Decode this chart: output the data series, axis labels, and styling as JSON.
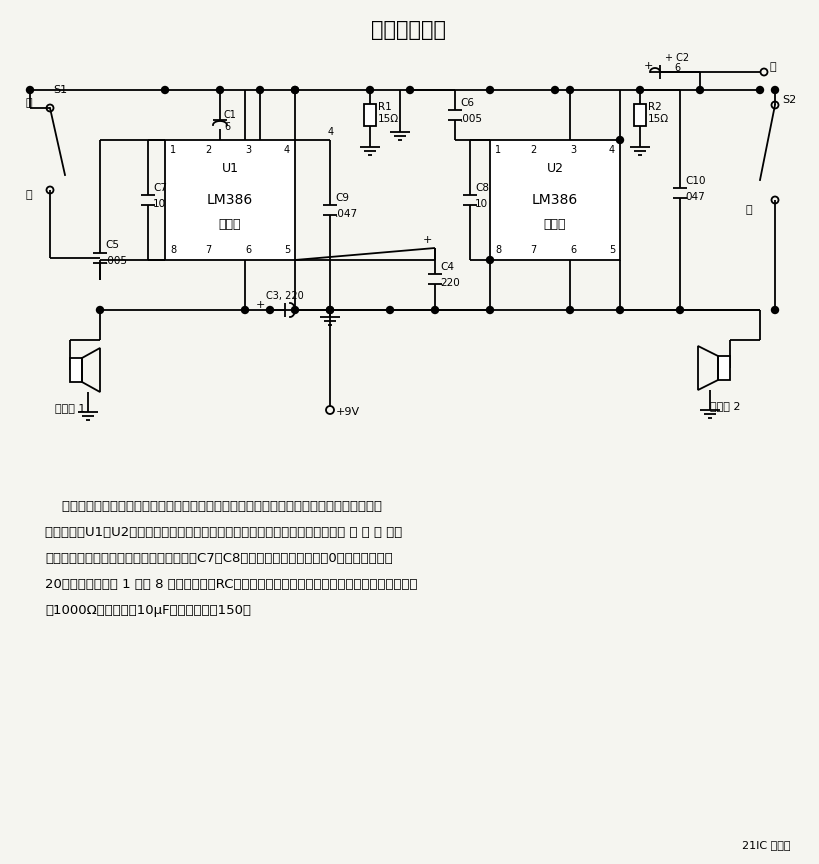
{
  "title": "双向通信电路",
  "title_fontsize": 15,
  "background_color": "#f5f5f0",
  "line_color": "#000000",
  "text_color": "#000000",
  "desc_lines": [
    "    该电路采用两个独立的放大器而非单一的放大器，每个通信站用一个，此外该电路还有一个",
    "时分装置。U1和U2为低压音频放大器，它们都是独立动作的个体，并带有各自的 转 换 开 关，",
    "以选择每个站的发送与接收。附加的电容器C7和C8，可使放大器的增益达到0，否则增益只有",
    "20左右。如果在脚 1 和脚 8 之间连接一个RC串联电路，则增益可为某一中间値。例如，取电阔値",
    "为1000Ω和电容値为10μF时，增益约为150。"
  ],
  "watermark": "21IC 电子网"
}
